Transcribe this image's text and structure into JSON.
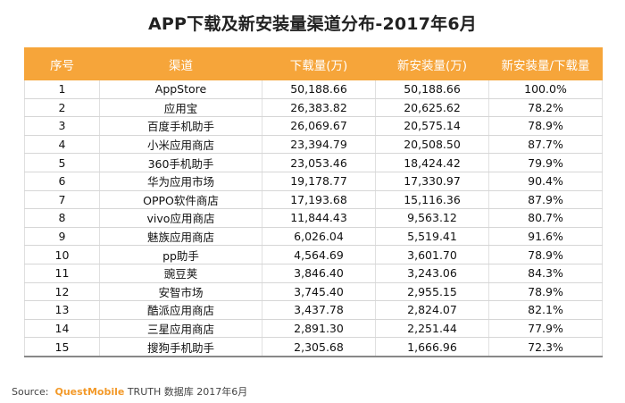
{
  "title": "APP下载及新安装量渠道分布-2017年6月",
  "table": {
    "headers": [
      "序号",
      "渠道",
      "下载量(万)",
      "新安装量(万)",
      "新安装量/下载量"
    ],
    "rows": [
      [
        "1",
        "AppStore",
        "50,188.66",
        "50,188.66",
        "100.0%"
      ],
      [
        "2",
        "应用宝",
        "26,383.82",
        "20,625.62",
        "78.2%"
      ],
      [
        "3",
        "百度手机助手",
        "26,069.67",
        "20,575.14",
        "78.9%"
      ],
      [
        "4",
        "小米应用商店",
        "23,394.79",
        "20,508.50",
        "87.7%"
      ],
      [
        "5",
        "360手机助手",
        "23,053.46",
        "18,424.42",
        "79.9%"
      ],
      [
        "6",
        "华为应用市场",
        "19,178.77",
        "17,330.97",
        "90.4%"
      ],
      [
        "7",
        "OPPO软件商店",
        "17,193.68",
        "15,116.36",
        "87.9%"
      ],
      [
        "8",
        "vivo应用商店",
        "11,844.43",
        "9,563.12",
        "80.7%"
      ],
      [
        "9",
        "魅族应用商店",
        "6,026.04",
        "5,519.41",
        "91.6%"
      ],
      [
        "10",
        "pp助手",
        "4,564.69",
        "3,601.70",
        "78.9%"
      ],
      [
        "11",
        "豌豆荚",
        "3,846.40",
        "3,243.06",
        "84.3%"
      ],
      [
        "12",
        "安智市场",
        "3,745.40",
        "2,955.15",
        "78.9%"
      ],
      [
        "13",
        "酷派应用商店",
        "3,437.78",
        "2,824.07",
        "82.1%"
      ],
      [
        "14",
        "三星应用商店",
        "2,891.30",
        "2,251.44",
        "77.9%"
      ],
      [
        "15",
        "搜狗手机助手",
        "2,305.68",
        "1,666.96",
        "72.3%"
      ]
    ]
  },
  "source": {
    "label": "Source:",
    "brand": "QuestMobile",
    "rest": "TRUTH 数据库 2017年6月"
  },
  "colors": {
    "header_bg": "#f6a53a",
    "brand": "#f39a2a"
  }
}
